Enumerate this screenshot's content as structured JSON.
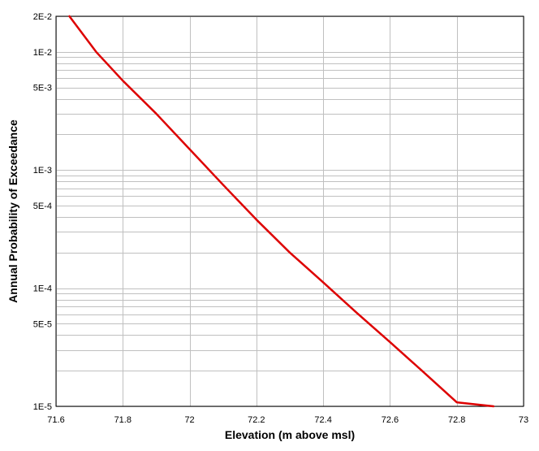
{
  "chart_data": {
    "type": "line",
    "title": "",
    "xlabel": "Elevation (m above msl)",
    "ylabel": "Annual Probability of Exceedance",
    "xlim": [
      71.6,
      73.0
    ],
    "ylim": [
      1e-05,
      0.02
    ],
    "y_scale": "log",
    "grid": true,
    "x_ticks": [
      71.6,
      71.8,
      72.0,
      72.2,
      72.4,
      72.6,
      72.8,
      73.0
    ],
    "x_tick_labels": [
      "71.6",
      "71.8",
      "72",
      "72.2",
      "72.4",
      "72.6",
      "72.8",
      "73"
    ],
    "y_ticks": [
      1e-05,
      5e-05,
      0.0001,
      0.0005,
      0.001,
      0.005,
      0.01,
      0.02
    ],
    "y_tick_labels": [
      "1E-5",
      "5E-5",
      "1E-4",
      "5E-4",
      "1E-3",
      "5E-3",
      "1E-2",
      "2E-2"
    ],
    "line_color": "#dd0000",
    "series": [
      {
        "x": [
          71.64,
          71.72,
          71.8,
          71.9,
          72.0,
          72.1,
          72.2,
          72.3,
          72.4,
          72.5,
          72.6,
          72.7,
          72.8,
          72.91
        ],
        "y": [
          0.02,
          0.01,
          0.0057,
          0.003,
          0.0015,
          0.00075,
          0.00038,
          0.0002,
          0.000112,
          6.2e-05,
          3.5e-05,
          1.95e-05,
          1.08e-05,
          1e-05
        ]
      }
    ]
  }
}
